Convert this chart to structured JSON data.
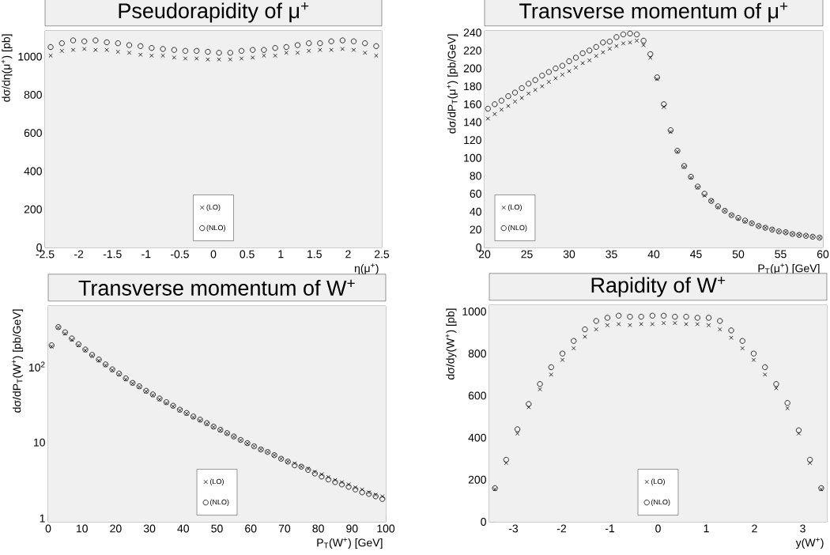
{
  "chart_data": [
    {
      "type": "scatter",
      "title": "Pseudorapidity of μ$^{+}$",
      "xlabel": "η(μ$^{+}$)",
      "ylabel": "dσ/dη(μ$^{+}$) [pb]",
      "x": [
        -2.417,
        -2.25,
        -2.083,
        -1.917,
        -1.75,
        -1.583,
        -1.417,
        -1.25,
        -1.083,
        -0.917,
        -0.75,
        -0.583,
        -0.417,
        -0.25,
        -0.083,
        0.083,
        0.25,
        0.417,
        0.583,
        0.75,
        0.917,
        1.083,
        1.25,
        1.417,
        1.583,
        1.75,
        1.917,
        2.083,
        2.25,
        2.417
      ],
      "series": [
        {
          "name": "(LO)",
          "color": "#000000",
          "marker": "cross",
          "values": [
            1005,
            1030,
            1035,
            1040,
            1035,
            1035,
            1025,
            1020,
            1010,
            1005,
            1005,
            995,
            990,
            990,
            985,
            985,
            985,
            990,
            995,
            1005,
            1005,
            1020,
            1020,
            1030,
            1035,
            1035,
            1040,
            1035,
            1020,
            1005
          ]
        },
        {
          "name": "(NLO)",
          "color": "#000000",
          "marker": "circle",
          "values": [
            1050,
            1070,
            1085,
            1080,
            1085,
            1075,
            1070,
            1060,
            1055,
            1045,
            1040,
            1035,
            1030,
            1030,
            1025,
            1020,
            1020,
            1030,
            1035,
            1035,
            1045,
            1050,
            1060,
            1070,
            1070,
            1080,
            1085,
            1080,
            1070,
            1055
          ]
        }
      ],
      "xlim": [
        -2.5,
        2.5
      ],
      "ylim": [
        0,
        1135
      ],
      "xticks": [
        -2.5,
        -2,
        -1.5,
        -1,
        -0.5,
        0,
        0.5,
        1,
        1.5,
        2,
        2.5
      ],
      "yticks": [
        0,
        200,
        400,
        600,
        800,
        1000
      ],
      "legend": "bottom"
    },
    {
      "type": "scatter",
      "title": "Transverse momentum of μ$^{+}$",
      "xlabel": "P$_{T}$(μ$^{+}$) [GeV]",
      "ylabel": "dσ/dP$_{T}$(μ$^{+}$) [pb/GeV]",
      "x": [
        20.4,
        21.2,
        22.0,
        22.8,
        23.6,
        24.4,
        25.2,
        26.0,
        26.8,
        27.6,
        28.4,
        29.2,
        30.0,
        30.8,
        31.6,
        32.4,
        33.2,
        34.0,
        34.8,
        35.6,
        36.4,
        37.2,
        38.0,
        38.8,
        39.6,
        40.4,
        41.2,
        42.0,
        42.8,
        43.6,
        44.4,
        45.2,
        46.0,
        46.8,
        47.6,
        48.4,
        49.2,
        50.0,
        50.8,
        51.6,
        52.4,
        53.2,
        54.0,
        54.8,
        55.6,
        56.4,
        57.2,
        58.0,
        58.8,
        59.6
      ],
      "series": [
        {
          "name": "(LO)",
          "color": "#000000",
          "marker": "cross",
          "values": [
            144,
            149,
            154,
            158,
            163,
            167,
            172,
            176,
            180,
            185,
            189,
            193,
            197,
            201,
            206,
            209,
            214,
            218,
            222,
            225,
            228,
            229,
            231,
            226,
            212,
            188,
            157,
            129,
            107,
            90,
            78,
            67,
            58,
            52,
            45,
            41,
            36,
            32,
            29,
            27,
            24,
            22,
            20,
            18,
            17,
            15,
            14,
            13,
            12,
            11
          ]
        },
        {
          "name": "(NLO)",
          "color": "#000000",
          "marker": "circle",
          "values": [
            155,
            160,
            164,
            169,
            173,
            178,
            183,
            187,
            192,
            196,
            200,
            203,
            208,
            212,
            217,
            220,
            224,
            229,
            230,
            235,
            238,
            239,
            238,
            231,
            216,
            190,
            160,
            131,
            108,
            91,
            79,
            68,
            60,
            52,
            46,
            41,
            36,
            33,
            30,
            27,
            24,
            22,
            20,
            18,
            17,
            15,
            14,
            13,
            12,
            11
          ]
        }
      ],
      "xlim": [
        20,
        60
      ],
      "ylim": [
        0,
        242
      ],
      "xticks": [
        20,
        25,
        30,
        35,
        40,
        45,
        50,
        55,
        60
      ],
      "yticks": [
        0,
        20,
        40,
        60,
        80,
        100,
        120,
        140,
        160,
        180,
        200,
        220,
        240
      ],
      "legend": "bottom left"
    },
    {
      "type": "scatter",
      "title": "Transverse momentum of W$^{+}$",
      "xlabel": "P$_{T}$(W$^{+}$) [GeV]",
      "ylabel": "dσ/dP$_{T}$(W$^{+}$) [pb/GeV]",
      "x": [
        1,
        3,
        5,
        7,
        9,
        11,
        13,
        15,
        17,
        19,
        21,
        23,
        25,
        27,
        29,
        31,
        33,
        35,
        37,
        39,
        41,
        43,
        45,
        47,
        49,
        51,
        53,
        55,
        57,
        59,
        61,
        63,
        65,
        67,
        69,
        71,
        73,
        75,
        77,
        79,
        81,
        83,
        85,
        87,
        89,
        91,
        93,
        95,
        97,
        99
      ],
      "series": [
        {
          "name": "(LO)",
          "color": "#000000",
          "marker": "cross",
          "values": [
            184,
            326,
            272,
            225,
            191,
            164,
            139,
            120,
            104,
            90,
            79,
            68,
            60,
            54,
            47,
            42,
            37,
            33,
            30,
            26.5,
            24,
            21.5,
            19.5,
            17.6,
            16,
            14.5,
            13.1,
            11.9,
            10.7,
            9.7,
            8.9,
            8.1,
            7.5,
            6.8,
            6.1,
            5.6,
            5.3,
            4.8,
            4.5,
            4.1,
            3.8,
            3.5,
            3.2,
            3.0,
            2.8,
            2.55,
            2.4,
            2.2,
            2.05,
            1.95
          ]
        },
        {
          "name": "(NLO)",
          "color": "#000000",
          "marker": "circle",
          "values": [
            191,
            332,
            283,
            235,
            197,
            168,
            143,
            124,
            107,
            92,
            81,
            70,
            61,
            55,
            48,
            43,
            38,
            34,
            30.5,
            27,
            24.5,
            22,
            20,
            18,
            16.2,
            14.7,
            13.3,
            12,
            10.8,
            9.8,
            8.9,
            8.1,
            7.5,
            6.8,
            6.1,
            5.6,
            5.0,
            4.8,
            4.35,
            3.9,
            3.55,
            3.25,
            3.0,
            2.8,
            2.6,
            2.4,
            2.2,
            2.1,
            1.95,
            1.8
          ]
        }
      ],
      "xlim": [
        0,
        100
      ],
      "ylim": [
        0.9,
        630
      ],
      "log": true,
      "xticks": [
        0,
        10,
        20,
        30,
        40,
        50,
        60,
        70,
        80,
        90,
        100
      ],
      "yticks": [
        1,
        10,
        {
          "value": 100,
          "label": "10$^{2}$"
        }
      ],
      "legend": "bottom"
    },
    {
      "type": "scatter",
      "title": "Rapidity of W$^{+}$",
      "xlabel": "y(W$^{+}$)",
      "ylabel": "dσ/dy(W$^{+}$) [pb]",
      "x": [
        -3.383,
        -3.15,
        -2.917,
        -2.683,
        -2.45,
        -2.217,
        -1.983,
        -1.75,
        -1.517,
        -1.283,
        -1.05,
        -0.817,
        -0.583,
        -0.35,
        -0.117,
        0.117,
        0.35,
        0.583,
        0.817,
        1.05,
        1.283,
        1.517,
        1.75,
        1.983,
        2.217,
        2.45,
        2.683,
        2.917,
        3.15,
        3.383
      ],
      "series": [
        {
          "name": "(LO)",
          "color": "#000000",
          "marker": "cross",
          "values": [
            155,
            280,
            420,
            545,
            630,
            700,
            770,
            825,
            880,
            915,
            935,
            940,
            935,
            940,
            940,
            945,
            945,
            940,
            940,
            935,
            915,
            875,
            825,
            770,
            700,
            635,
            540,
            420,
            280,
            155
          ]
        },
        {
          "name": "(NLO)",
          "color": "#000000",
          "marker": "circle",
          "values": [
            160,
            295,
            440,
            560,
            655,
            735,
            800,
            860,
            915,
            955,
            970,
            980,
            975,
            975,
            980,
            980,
            975,
            975,
            970,
            970,
            955,
            910,
            860,
            800,
            735,
            655,
            565,
            435,
            295,
            160
          ]
        }
      ],
      "xlim": [
        -3.5,
        3.5
      ],
      "ylim": [
        0,
        1030
      ],
      "xticks": [
        -3,
        -2,
        -1,
        0,
        1,
        2,
        3
      ],
      "yticks": [
        0,
        200,
        400,
        600,
        800,
        1000
      ],
      "legend": "bottom"
    }
  ]
}
